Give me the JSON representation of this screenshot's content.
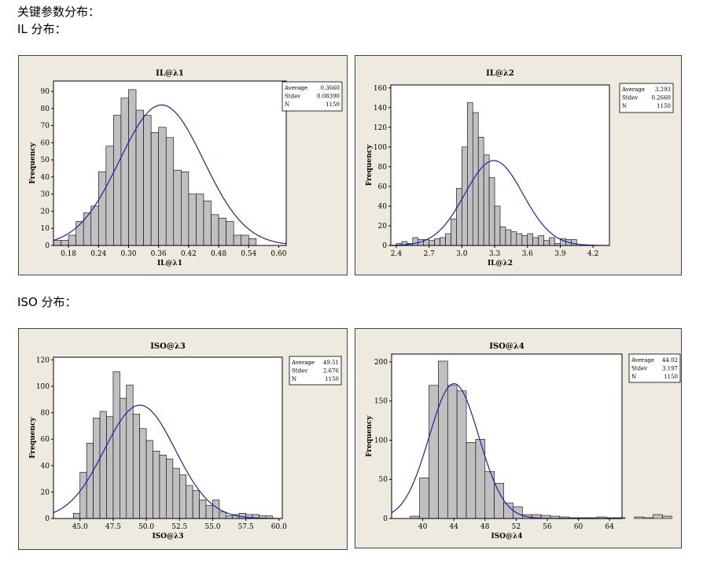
{
  "headings": {
    "line1": "关键参数分布：",
    "line2": "IL 分布：",
    "line3": "ISO 分布："
  },
  "colors": {
    "bar_fill": "#c0c0c0",
    "bar_stroke": "#000000",
    "curve": "#1f1fb0",
    "panel_bg": "#eeeae0"
  },
  "chart_data": [
    {
      "type": "bar",
      "title": "IL@λ1",
      "xlabel": "IL@λ1",
      "ylabel": "Frequency",
      "xlim": [
        0.15,
        0.615
      ],
      "ylim": [
        0,
        96
      ],
      "xticks": [
        "0.18",
        "0.24",
        "0.30",
        "0.36",
        "0.42",
        "0.48",
        "0.54",
        "0.60"
      ],
      "yticks": [
        "0",
        "10",
        "20",
        "30",
        "40",
        "50",
        "60",
        "70",
        "80",
        "90"
      ],
      "bin_start": 0.15,
      "bin_width": 0.015,
      "values": [
        3,
        3,
        6,
        14,
        19,
        23,
        43,
        58,
        76,
        86,
        91,
        79,
        76,
        66,
        69,
        63,
        44,
        43,
        30,
        30,
        26,
        18,
        16,
        14,
        6,
        6,
        4
      ],
      "stats": {
        "labels": [
          "Average",
          "Stdev",
          "N"
        ],
        "values": [
          "0.3660",
          "0.08390",
          "1150"
        ]
      }
    },
    {
      "type": "bar",
      "title": "IL@λ2",
      "xlabel": "IL@λ2",
      "ylabel": "Frequency",
      "xlim": [
        2.35,
        4.35
      ],
      "ylim": [
        0,
        163
      ],
      "xticks": [
        "2.4",
        "2.7",
        "3.0",
        "3.3",
        "3.6",
        "3.9",
        "4.2"
      ],
      "yticks": [
        "0",
        "20",
        "40",
        "60",
        "80",
        "100",
        "120",
        "140",
        "160"
      ],
      "bin_start": 2.35,
      "bin_width": 0.05,
      "values": [
        0,
        2,
        4,
        2,
        8,
        6,
        6,
        5,
        7,
        8,
        12,
        27,
        58,
        100,
        145,
        135,
        110,
        92,
        69,
        40,
        19,
        16,
        14,
        12,
        10,
        12,
        8,
        10,
        5,
        8,
        2,
        7,
        6,
        6
      ],
      "stats": {
        "labels": [
          "Average",
          "Stdev",
          "N"
        ],
        "values": [
          "3.293",
          "0.2660",
          "1150"
        ]
      }
    },
    {
      "type": "bar",
      "title": "ISO@λ3",
      "xlabel": "ISO@λ3",
      "ylabel": "Frequency",
      "xlim": [
        43.0,
        60.25
      ],
      "ylim": [
        0,
        122
      ],
      "xticks": [
        "45.0",
        "47.5",
        "50.0",
        "52.5",
        "55.0",
        "57.5",
        "60.0"
      ],
      "yticks": [
        "0",
        "20",
        "40",
        "60",
        "80",
        "100",
        "120"
      ],
      "bin_start": 44.5,
      "bin_width": 0.5,
      "values": [
        4,
        35,
        57,
        76,
        81,
        77,
        111,
        91,
        101,
        79,
        68,
        59,
        51,
        48,
        45,
        38,
        33,
        25,
        21,
        14,
        10,
        14,
        5,
        2,
        3,
        4,
        3,
        3,
        2,
        2
      ],
      "stats": {
        "labels": [
          "Average",
          "Stdev",
          "N"
        ],
        "values": [
          "49.51",
          "2.676",
          "1150"
        ]
      }
    },
    {
      "type": "bar",
      "title": "ISO@λ4",
      "xlabel": "ISO@λ4",
      "ylabel": "Frequency",
      "xlim": [
        36.0,
        65.6
      ],
      "ylim": [
        0,
        210
      ],
      "xticks": [
        "40",
        "44",
        "48",
        "52",
        "56",
        "60",
        "64"
      ],
      "yticks": [
        "0",
        "50",
        "100",
        "150",
        "200"
      ],
      "bin_start": 38.4,
      "bin_width": 1.2,
      "values": [
        3,
        52,
        170,
        201,
        170,
        163,
        97,
        101,
        60,
        45,
        20,
        15,
        5,
        5,
        4,
        3,
        2,
        1,
        1,
        1,
        2,
        1,
        1,
        0,
        2,
        1,
        5,
        3
      ],
      "stats": {
        "labels": [
          "Average",
          "Stdev",
          "N"
        ],
        "values": [
          "44.02",
          "3.197",
          "1150"
        ]
      }
    }
  ]
}
